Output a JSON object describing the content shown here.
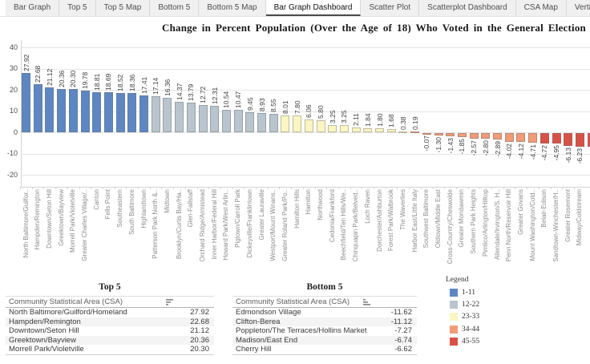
{
  "tabs": {
    "active_label": "Bar Graph Dashboard",
    "items": [
      "Bar Graph",
      "Top 5",
      "Top 5 Map",
      "Bottom 5",
      "Bottom 5 Map",
      "Bar Graph Dashboard",
      "Scatter Plot",
      "Scatterplot Dashboard",
      "CSA Map",
      "Vertical Bar Graph"
    ]
  },
  "chart_data": {
    "type": "bar",
    "title": "Change in Percent Population (Over the Age of 18) Who Voted in the General Election By CSA, 2012-202",
    "xlabel": "",
    "ylabel": "",
    "y_ticks": [
      40,
      30,
      20,
      10,
      0,
      -10,
      -20
    ],
    "ylim": [
      -25,
      40
    ],
    "grid": true,
    "legend_position": "right-bottom",
    "rank_groups": [
      {
        "label": "1-11",
        "color": "#5d87c2"
      },
      {
        "label": "12-22",
        "color": "#b9c5ce"
      },
      {
        "label": "23-33",
        "color": "#fbf6c1"
      },
      {
        "label": "34-44",
        "color": "#f19c76"
      },
      {
        "label": "45-55",
        "color": "#d85147"
      }
    ],
    "bars": [
      {
        "label": "North Baltimore/Guilfor..",
        "value": 27.92
      },
      {
        "label": "Hampden/Remington",
        "value": 22.68
      },
      {
        "label": "Downtown/Seton Hill",
        "value": 21.12
      },
      {
        "label": "Greektown/Bayview",
        "value": 20.36
      },
      {
        "label": "Morrell Park/Violetville",
        "value": 20.3
      },
      {
        "label": "Greater Charles Village/..",
        "value": 19.78
      },
      {
        "label": "Canton",
        "value": 18.81
      },
      {
        "label": "Fells Point",
        "value": 18.69
      },
      {
        "label": "Southeastern",
        "value": 18.52
      },
      {
        "label": "South Baltimore",
        "value": 18.36
      },
      {
        "label": "Highlandtown",
        "value": 17.41
      },
      {
        "label": "Patterson Park North &..",
        "value": 17.14
      },
      {
        "label": "Midtown",
        "value": 16.36
      },
      {
        "label": "Brooklyn/Curtis Bay/Ha..",
        "value": 14.37
      },
      {
        "label": "Glen-Fallstaff",
        "value": 13.79
      },
      {
        "label": "Orchard Ridge/Armistead",
        "value": 12.72
      },
      {
        "label": "Inner Harbor/Federal Hill",
        "value": 12.31
      },
      {
        "label": "Howard Park/West Arlin..",
        "value": 10.54
      },
      {
        "label": "Pigtown/Carroll Park",
        "value": 10.47
      },
      {
        "label": "Dickeyville/Franklintown",
        "value": 9.45
      },
      {
        "label": "Greater Lauraville",
        "value": 8.93
      },
      {
        "label": "Westport/Mount Winans..",
        "value": 8.55
      },
      {
        "label": "Greater Roland Park/Po..",
        "value": 8.01
      },
      {
        "label": "Hamilton Hills",
        "value": 7.8
      },
      {
        "label": "Hamilton",
        "value": 6.06
      },
      {
        "label": "Northwood",
        "value": 5.8
      },
      {
        "label": "Cedonia/Frankford",
        "value": 3.25
      },
      {
        "label": "Beechfield/Ten Hills/We..",
        "value": 3.25
      },
      {
        "label": "Chinquapin Park/Belved..",
        "value": 2.11
      },
      {
        "label": "Loch Raven",
        "value": 1.84
      },
      {
        "label": "Dorchester/Ashburton",
        "value": 1.8
      },
      {
        "label": "Forest Park/Walbrook",
        "value": 1.68
      },
      {
        "label": "The Waverlies",
        "value": 0.38
      },
      {
        "label": "Harbor East/Little Italy",
        "value": 0.19
      },
      {
        "label": "Southwest Baltimore",
        "value": -0.07
      },
      {
        "label": "Oldtown/Middle East",
        "value": -1.3
      },
      {
        "label": "Cross-Country/Cheswolde",
        "value": -1.43
      },
      {
        "label": "Greater Mondawmin",
        "value": -1.85
      },
      {
        "label": "Southern Park Heights",
        "value": -2.57
      },
      {
        "label": "Pimlico/Arlington/Hilltop",
        "value": -2.8
      },
      {
        "label": "Allendale/Irvington/S. H..",
        "value": -2.89
      },
      {
        "label": "Penn North/Reservoir Hill",
        "value": -4.02
      },
      {
        "label": "Greater Govans",
        "value": -4.12
      },
      {
        "label": "Mount Washington/Cold..",
        "value": -4.71
      },
      {
        "label": "Belair-Edison",
        "value": -4.72
      },
      {
        "label": "Sandtown-Winchester/H..",
        "value": -4.95
      },
      {
        "label": "Greater Rosemont",
        "value": -6.13
      },
      {
        "label": "Midway/Coldstream",
        "value": -6.23
      }
    ],
    "right_edge_partial_bar": {
      "approx_value": -6.4,
      "group": "45-55"
    }
  },
  "legend": {
    "title": "Legend"
  },
  "tables": {
    "top5": {
      "title": "Top 5",
      "header": "Community Statistical Area (CSA)",
      "sort": "desc",
      "rows": [
        {
          "csa": "North Baltimore/Guilford/Homeland",
          "value": "27.92"
        },
        {
          "csa": "Hampden/Remington",
          "value": "22.68"
        },
        {
          "csa": "Downtown/Seton Hill",
          "value": "21.12"
        },
        {
          "csa": "Greektown/Bayview",
          "value": "20.36"
        },
        {
          "csa": "Morrell Park/Violetville",
          "value": "20.30"
        }
      ]
    },
    "bottom5": {
      "title": "Bottom 5",
      "header": "Community Statistical Area (CSA)",
      "sort": "asc",
      "rows": [
        {
          "csa": "Edmondson Village",
          "value": "-11.62"
        },
        {
          "csa": "Clifton-Berea",
          "value": "-11.12"
        },
        {
          "csa": "Poppleton/The Terraces/Hollins Market",
          "value": "-7.27"
        },
        {
          "csa": "Madison/East End",
          "value": "-6.74"
        },
        {
          "csa": "Cherry Hill",
          "value": "-6.62"
        }
      ]
    }
  }
}
